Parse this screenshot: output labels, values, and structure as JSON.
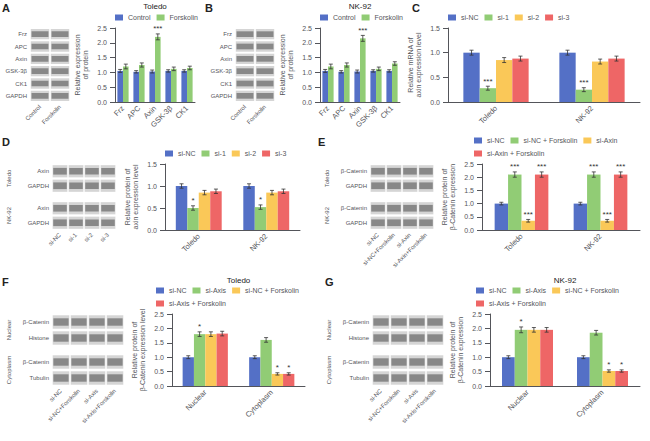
{
  "chart_data": [
    {
      "type": "blot",
      "panel": "A",
      "categories": [
        "Control",
        "Forskolin"
      ],
      "sections": [
        {
          "rows": [
            "Frz",
            "APC",
            "Axin",
            "GSK-3β",
            "CK1",
            "GAPDH"
          ]
        }
      ],
      "color": "#888888"
    },
    {
      "type": "bar",
      "title": "Toledo",
      "categories": [
        "Frz",
        "APC",
        "Axin",
        "GSK-3β",
        "CK1"
      ],
      "series": [
        {
          "name": "Control",
          "color": "#5470c6",
          "values": [
            1.05,
            1.02,
            1.03,
            1.05,
            1.05
          ],
          "errors": [
            0.05,
            0.04,
            0.05,
            0.04,
            0.04
          ]
        },
        {
          "name": "Forskolin",
          "color": "#91cc75",
          "values": [
            1.2,
            1.25,
            2.2,
            1.12,
            1.15
          ],
          "errors": [
            0.08,
            0.07,
            0.1,
            0.06,
            0.06
          ]
        }
      ],
      "ylabel": "Relative expression\nof protein",
      "ylim": [
        0,
        2.5
      ],
      "yticks": [
        {
          "value": 0,
          "label": "0.0"
        },
        0.5,
        {
          "value": 1,
          "label": "1.0"
        },
        1.5,
        {
          "value": 2,
          "label": "2.0"
        },
        2.5
      ],
      "grid": false,
      "legend": "top",
      "annotations": [
        {
          "text": "***",
          "series": "Forskolin",
          "category": "Axin"
        }
      ]
    },
    {
      "type": "blot",
      "panel": "B",
      "categories": [
        "Control",
        "Forskolin"
      ],
      "sections": [
        {
          "rows": [
            "Frz",
            "APC",
            "Axin",
            "GSK-3β",
            "CK1",
            "GAPDH"
          ]
        }
      ],
      "color": "#888888"
    },
    {
      "type": "bar",
      "title": "NK-92",
      "categories": [
        "Frz",
        "APC",
        "Axin",
        "GSK-3β",
        "CK1"
      ],
      "series": [
        {
          "name": "Control",
          "color": "#5470c6",
          "values": [
            1.05,
            1.02,
            1.03,
            1.05,
            1.05
          ],
          "errors": [
            0.05,
            0.04,
            0.05,
            0.04,
            0.04
          ]
        },
        {
          "name": "Forskolin",
          "color": "#91cc75",
          "values": [
            1.2,
            1.25,
            2.15,
            1.12,
            1.3
          ],
          "errors": [
            0.08,
            0.07,
            0.1,
            0.06,
            0.06
          ]
        }
      ],
      "ylabel": "Relative expression\nof protein",
      "ylim": [
        0,
        2.5
      ],
      "yticks": [
        {
          "value": 0,
          "label": "0.0"
        },
        0.5,
        {
          "value": 1,
          "label": "1.0"
        },
        1.5,
        {
          "value": 2,
          "label": "2.0"
        },
        2.5
      ],
      "grid": false,
      "legend": "top",
      "annotations": [
        {
          "text": "***",
          "series": "Forskolin",
          "category": "Axin"
        }
      ]
    },
    {
      "type": "bar",
      "panel": "C",
      "categories": [
        "Toledo",
        "NK-92"
      ],
      "series": [
        {
          "name": "si-NC",
          "color": "#5470c6",
          "values": [
            1.0,
            1.0
          ],
          "errors": [
            0.05,
            0.05
          ]
        },
        {
          "name": "si-1",
          "color": "#91cc75",
          "values": [
            0.28,
            0.25
          ],
          "errors": [
            0.04,
            0.04
          ]
        },
        {
          "name": "si-2",
          "color": "#fac858",
          "values": [
            0.85,
            0.82
          ],
          "errors": [
            0.05,
            0.05
          ]
        },
        {
          "name": "si-3",
          "color": "#ee6666",
          "values": [
            0.88,
            0.88
          ],
          "errors": [
            0.05,
            0.05
          ]
        }
      ],
      "ylabel": "Relative mRNA of\naxin expression level",
      "ylim": [
        0,
        1.5
      ],
      "yticks": [
        {
          "value": 0,
          "label": "0.0"
        },
        0.5,
        {
          "value": 1,
          "label": "1.0"
        },
        1.5
      ],
      "grid": false,
      "legend": "top",
      "annotations": [
        {
          "text": "***",
          "series": "si-1",
          "category": "Toledo"
        },
        {
          "text": "***",
          "series": "si-1",
          "category": "NK-92"
        }
      ]
    },
    {
      "type": "blot",
      "panel": "D",
      "categories": [
        "si-NC",
        "si-1",
        "si-2",
        "si-3"
      ],
      "sections": [
        {
          "name": "Toledo",
          "rows": [
            "Axin",
            "GAPDH"
          ]
        },
        {
          "name": "NK-92",
          "rows": [
            "Axin",
            "GAPDH"
          ]
        }
      ],
      "color": "#888888"
    },
    {
      "type": "bar",
      "categories": [
        "Toledo",
        "NK-92"
      ],
      "series": [
        {
          "name": "si-NC",
          "color": "#5470c6",
          "values": [
            1.0,
            1.0
          ],
          "errors": [
            0.05,
            0.05
          ]
        },
        {
          "name": "si-1",
          "color": "#91cc75",
          "values": [
            0.5,
            0.52
          ],
          "errors": [
            0.05,
            0.05
          ]
        },
        {
          "name": "si-2",
          "color": "#fac858",
          "values": [
            0.85,
            0.85
          ],
          "errors": [
            0.05,
            0.05
          ]
        },
        {
          "name": "si-3",
          "color": "#ee6666",
          "values": [
            0.88,
            0.88
          ],
          "errors": [
            0.05,
            0.05
          ]
        }
      ],
      "ylabel": "Relative protein of\naxin expression level",
      "ylim": [
        0,
        1.5
      ],
      "yticks": [
        {
          "value": 0,
          "label": "0.0"
        },
        0.5,
        {
          "value": 1,
          "label": "1.0"
        },
        1.5
      ],
      "grid": false,
      "legend": "top",
      "annotations": [
        {
          "text": "*",
          "series": "si-1",
          "category": "Toledo"
        },
        {
          "text": "*",
          "series": "si-1",
          "category": "NK-92"
        }
      ]
    },
    {
      "type": "blot",
      "panel": "E",
      "categories": [
        "si-NC",
        "si-NC+Forskolin",
        "si-Axin",
        "si-Axin+Forskolin"
      ],
      "sections": [
        {
          "name": "Toledo",
          "rows": [
            "β-Catenin",
            "GAPDH"
          ]
        },
        {
          "name": "NK-92",
          "rows": [
            "β-Catenin",
            "GAPDH"
          ]
        }
      ],
      "color": "#888888"
    },
    {
      "type": "bar",
      "categories": [
        "Toledo",
        "NK-92"
      ],
      "series": [
        {
          "name": "si-NC",
          "color": "#5470c6",
          "values": [
            1.0,
            1.0
          ],
          "errors": [
            0.05,
            0.05
          ]
        },
        {
          "name": "si-NC + Forskolin",
          "color": "#91cc75",
          "values": [
            2.1,
            2.1
          ],
          "errors": [
            0.1,
            0.1
          ]
        },
        {
          "name": "si-Axin",
          "color": "#fac858",
          "values": [
            0.35,
            0.35
          ],
          "errors": [
            0.05,
            0.05
          ]
        },
        {
          "name": "si-Axin + Forskolin",
          "color": "#ee6666",
          "values": [
            2.1,
            2.1
          ],
          "errors": [
            0.1,
            0.1
          ]
        }
      ],
      "ylabel": "Relative protein of\nβ-Catenin expression",
      "ylim": [
        0,
        2.5
      ],
      "yticks": [
        {
          "value": 0,
          "label": "0.0"
        },
        0.5,
        {
          "value": 1,
          "label": "1.0"
        },
        1.5,
        {
          "value": 2,
          "label": "2.0"
        },
        2.5
      ],
      "grid": false,
      "legend": "top",
      "annotations": [
        {
          "text": "***",
          "series": "si-NC + Forskolin",
          "category": "Toledo"
        },
        {
          "text": "***",
          "series": "si-Axin",
          "category": "Toledo"
        },
        {
          "text": "***",
          "series": "si-Axin + Forskolin",
          "category": "Toledo"
        },
        {
          "text": "***",
          "series": "si-NC + Forskolin",
          "category": "NK-92"
        },
        {
          "text": "***",
          "series": "si-Axin",
          "category": "NK-92"
        },
        {
          "text": "***",
          "series": "si-Axin + Forskolin",
          "category": "NK-92"
        }
      ]
    },
    {
      "type": "blot",
      "panel": "F",
      "categories": [
        "si-NC",
        "si-NC+Forskolin",
        "si-Axis",
        "si-Axis+Forskolin"
      ],
      "sections": [
        {
          "name": "Nuclear",
          "rows": [
            "β-Catenin",
            "Histone"
          ]
        },
        {
          "name": "Cytoplasm",
          "rows": [
            "β-Catenin",
            "Tubulin"
          ]
        }
      ],
      "color": "#888888"
    },
    {
      "type": "bar",
      "title": "Toledo",
      "categories": [
        "Nuclear",
        "Cytoplasm"
      ],
      "series": [
        {
          "name": "si-NC",
          "color": "#5470c6",
          "values": [
            1.0,
            1.0
          ],
          "errors": [
            0.05,
            0.05
          ]
        },
        {
          "name": "si-Axis",
          "color": "#91cc75",
          "values": [
            1.8,
            1.6
          ],
          "errors": [
            0.08,
            0.08
          ]
        },
        {
          "name": "si-NC + Forskolin",
          "color": "#fac858",
          "values": [
            1.8,
            0.42
          ],
          "errors": [
            0.08,
            0.04
          ]
        },
        {
          "name": "si-Axis + Forskolin",
          "color": "#ee6666",
          "values": [
            1.82,
            0.42
          ],
          "errors": [
            0.08,
            0.04
          ]
        }
      ],
      "ylabel": "Relative protein of\nβ-Catenin expression level",
      "ylim": [
        0,
        2.5
      ],
      "yticks": [
        {
          "value": 0,
          "label": "0.0"
        },
        0.5,
        {
          "value": 1,
          "label": "1.0"
        },
        1.5,
        {
          "value": 2,
          "label": "2.0"
        },
        2.5
      ],
      "grid": false,
      "legend": "top",
      "annotations": [
        {
          "text": "*",
          "series": "si-Axis",
          "category": "Nuclear"
        },
        {
          "text": "*",
          "series": "si-NC + Forskolin",
          "category": "Cytoplasm"
        },
        {
          "text": "*",
          "series": "si-Axis + Forskolin",
          "category": "Cytoplasm"
        }
      ]
    },
    {
      "type": "blot",
      "panel": "G",
      "categories": [
        "si-NC",
        "si-NC+Forskolin",
        "si-Axis",
        "si-Axis+Forskolin"
      ],
      "sections": [
        {
          "name": "Nuclear",
          "rows": [
            "β-Catenin",
            "Histone"
          ]
        },
        {
          "name": "Cytoplasm",
          "rows": [
            "β-Catenin",
            "Tubulin"
          ]
        }
      ],
      "color": "#888888"
    },
    {
      "type": "bar",
      "title": "NK-92",
      "categories": [
        "Nuclear",
        "Cytoplasm"
      ],
      "series": [
        {
          "name": "si-NC",
          "color": "#5470c6",
          "values": [
            1.0,
            1.0
          ],
          "errors": [
            0.05,
            0.05
          ]
        },
        {
          "name": "si-Axis",
          "color": "#91cc75",
          "values": [
            1.95,
            1.85
          ],
          "errors": [
            0.1,
            0.08
          ]
        },
        {
          "name": "si-NC + Forskolin",
          "color": "#fac858",
          "values": [
            1.95,
            0.52
          ],
          "errors": [
            0.08,
            0.04
          ]
        },
        {
          "name": "si-Axis + Forskolin",
          "color": "#ee6666",
          "values": [
            1.95,
            0.52
          ],
          "errors": [
            0.08,
            0.04
          ]
        }
      ],
      "ylabel": "Relative protein of\nβ-Catenin expression",
      "ylim": [
        0,
        2.5
      ],
      "yticks": [
        {
          "value": 0,
          "label": "0.0"
        },
        0.5,
        {
          "value": 1,
          "label": "1.0"
        },
        1.5,
        {
          "value": 2,
          "label": "2.0"
        },
        2.5
      ],
      "grid": false,
      "legend": "top",
      "annotations": [
        {
          "text": "*",
          "series": "si-Axis",
          "category": "Nuclear"
        },
        {
          "text": "*",
          "series": "si-NC + Forskolin",
          "category": "Cytoplasm"
        },
        {
          "text": "*",
          "series": "si-Axis + Forskolin",
          "category": "Cytoplasm"
        }
      ]
    }
  ]
}
